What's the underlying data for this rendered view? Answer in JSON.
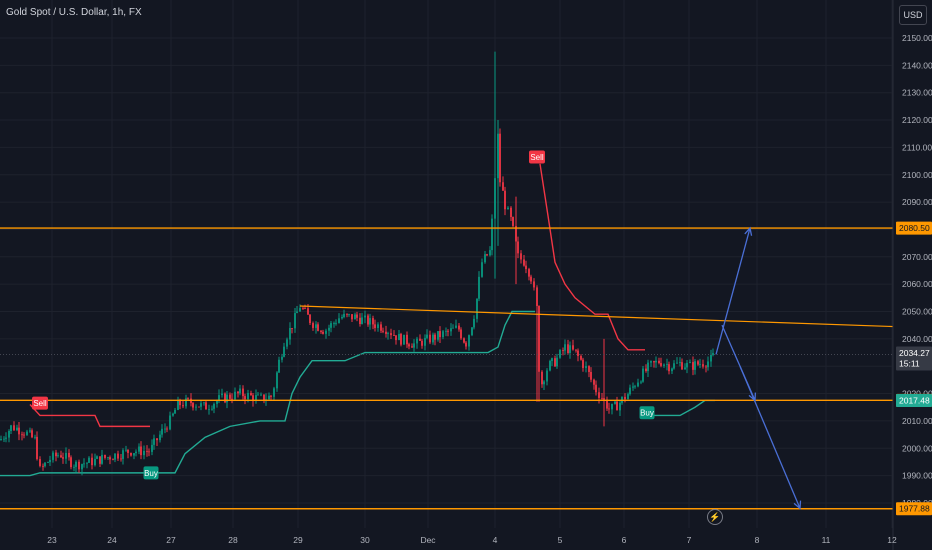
{
  "header": {
    "symbol_title": "Gold Spot / U.S. Dollar, 1h, FX",
    "currency_label": "USD"
  },
  "chart_data": {
    "type": "candlestick",
    "title": "Gold Spot / U.S. Dollar, 1h, FX",
    "y_axis": {
      "ticks": [
        "2150.00",
        "2140.00",
        "2130.00",
        "2120.00",
        "2110.00",
        "2100.00",
        "2090.00",
        "2080.00",
        "2070.00",
        "2060.00",
        "2050.00",
        "2040.00",
        "2030.00",
        "2020.00",
        "2010.00",
        "2000.00",
        "1990.00",
        "1980.00"
      ],
      "ylim": [
        1976,
        2158
      ]
    },
    "x_axis": {
      "ticks": [
        "23",
        "24",
        "27",
        "28",
        "29",
        "30",
        "Dec",
        "4",
        "5",
        "6",
        "7",
        "8",
        "11",
        "12"
      ]
    },
    "price_labels": [
      {
        "value": 2080.5,
        "text": "2080.50",
        "color": "#ff9800",
        "kind": "horizontal-line"
      },
      {
        "value": 2034.27,
        "text": "2034.27",
        "countdown": "15:11",
        "color": "#363a45",
        "kind": "last-price"
      },
      {
        "value": 2017.52,
        "text": "2017.52",
        "color": "#ff9800",
        "kind": "horizontal-line"
      },
      {
        "value": 2017.48,
        "text": "2017.48",
        "color": "#22ab94",
        "kind": "supertrend"
      },
      {
        "value": 1977.88,
        "text": "1977.88",
        "color": "#ff9800",
        "kind": "horizontal-line"
      }
    ],
    "trendline": {
      "from_price": 2052.0,
      "to_price": 2044.5,
      "color": "#ff9800"
    },
    "signals": [
      {
        "text": "Sell",
        "type": "sell",
        "price": 2016.5,
        "color": "#f23645"
      },
      {
        "text": "Sell",
        "type": "sell",
        "price": 2106.5,
        "color": "#f23645"
      },
      {
        "text": "Buy",
        "type": "buy",
        "price": 1991,
        "color": "#089981"
      },
      {
        "text": "Buy",
        "type": "buy",
        "price": 2013,
        "color": "#089981"
      }
    ],
    "projection_color": "#4a6fd6",
    "grid": true
  },
  "footer": {
    "bolt_icon": "⚡"
  }
}
